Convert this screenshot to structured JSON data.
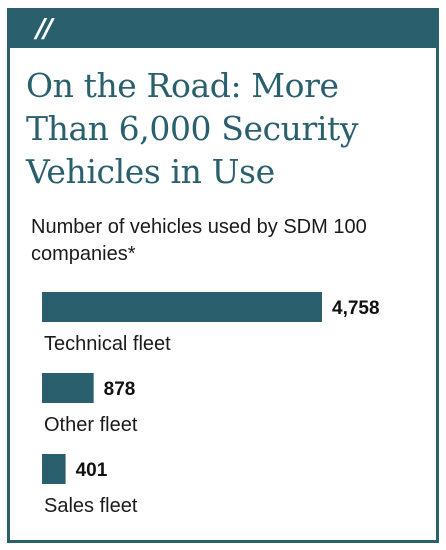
{
  "header": {
    "mark": "//"
  },
  "title": "On the Road: More Than 6,000 Security Vehicles in Use",
  "subtitle": "Number of vehicles used by SDM 100 companies*",
  "colors": {
    "accent": "#2a5f6e",
    "bar": "#2a5f6e",
    "text": "#1a1a1a"
  },
  "chart_data": {
    "type": "bar",
    "orientation": "horizontal",
    "title": "On the Road: More Than 6,000 Security Vehicles in Use",
    "subtitle": "Number of vehicles used by SDM 100 companies*",
    "categories": [
      "Technical fleet",
      "Other fleet",
      "Sales fleet"
    ],
    "values": [
      4758,
      878,
      401
    ],
    "value_labels": [
      "4,758",
      "878",
      "401"
    ],
    "xlabel": "",
    "ylabel": "",
    "grid": false,
    "legend": "none"
  }
}
